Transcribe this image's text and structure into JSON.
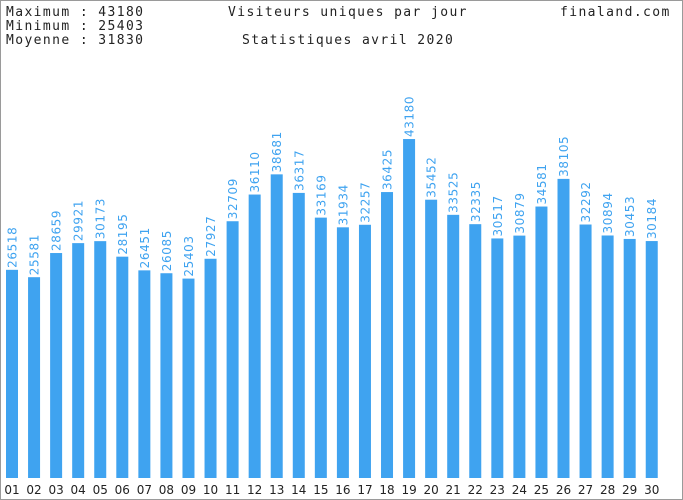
{
  "header": {
    "maximum": "Maximum : 43180",
    "minimum": "Minimum : 25403",
    "moyenne": "Moyenne : 31830",
    "site": "finaland.com"
  },
  "colors": {
    "bar": "#3fa3f0",
    "value_label": "#3fa3f0",
    "tick_label": "#222222",
    "border": "#9a9a9a"
  },
  "chart_data": {
    "type": "bar",
    "title": "Visiteurs uniques par jour",
    "subtitle": "Statistiques avril 2020",
    "categories": [
      "01",
      "02",
      "03",
      "04",
      "05",
      "06",
      "07",
      "08",
      "09",
      "10",
      "11",
      "12",
      "13",
      "14",
      "15",
      "16",
      "17",
      "18",
      "19",
      "20",
      "21",
      "22",
      "23",
      "24",
      "25",
      "26",
      "27",
      "28",
      "29",
      "30"
    ],
    "values": [
      26518,
      25581,
      28659,
      29921,
      30173,
      28195,
      26451,
      26085,
      25403,
      27927,
      32709,
      36110,
      38681,
      36317,
      33169,
      31934,
      32257,
      36425,
      43180,
      35452,
      33525,
      32335,
      30517,
      30879,
      34581,
      38105,
      32292,
      30894,
      30453,
      30184
    ],
    "ylim": [
      0,
      55000
    ],
    "grid": false,
    "legend": "none",
    "data_labels": "vertical, above bars"
  }
}
